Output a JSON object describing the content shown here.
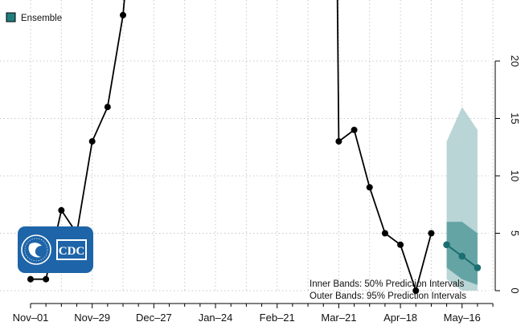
{
  "chart_data": {
    "type": "line",
    "title": "",
    "xlabel": "",
    "ylabel": "",
    "ylim": [
      -0.5,
      25
    ],
    "grid": true,
    "y_axis_side": "right",
    "y_ticks": [
      0,
      5,
      10,
      15,
      20
    ],
    "x_ticks": [
      {
        "label": "Nov–01",
        "week": 0
      },
      {
        "label": "Nov–29",
        "week": 4
      },
      {
        "label": "Dec–27",
        "week": 8
      },
      {
        "label": "Jan–24",
        "week": 12
      },
      {
        "label": "Feb–21",
        "week": 16
      },
      {
        "label": "Mar–21",
        "week": 20
      },
      {
        "label": "Apr–18",
        "week": 24
      },
      {
        "label": "May–16",
        "week": 28
      }
    ],
    "observed": {
      "x": [
        0,
        1,
        2,
        3,
        4,
        5,
        6,
        20,
        21,
        22,
        23,
        24,
        25,
        26
      ],
      "y": [
        1,
        1,
        7,
        5,
        13,
        16,
        24,
        13,
        14,
        9,
        5,
        4,
        0,
        5
      ],
      "leading_in": {
        "x": 6.2,
        "y": 27
      },
      "trailing_out": {
        "x": 19.9,
        "y": 27
      }
    },
    "forecast": {
      "name": "Ensemble",
      "x": [
        27,
        28,
        29
      ],
      "median": [
        4,
        3,
        2
      ],
      "inner_lower": [
        2,
        1,
        0.5
      ],
      "inner_upper": [
        6,
        6,
        5
      ],
      "outer_lower": [
        1,
        0,
        0
      ],
      "outer_upper": [
        13,
        16,
        14
      ]
    },
    "legend": {
      "position": "top-left",
      "label": "Ensemble"
    },
    "annotations": [
      "Inner Bands: 50% Prediction Intervals",
      "Outer Bands: 95% Prediction Intervals"
    ],
    "colors": {
      "observed": "#000000",
      "median": "#1b6f70",
      "inner_band": "#5c9ea0",
      "outer_band": "#b6d3d4",
      "legend_swatch": "#1f7f7f",
      "logo_bg": "#1e64a8",
      "grid": "#c8c8c8"
    },
    "logo": {
      "text": "CDC"
    }
  }
}
